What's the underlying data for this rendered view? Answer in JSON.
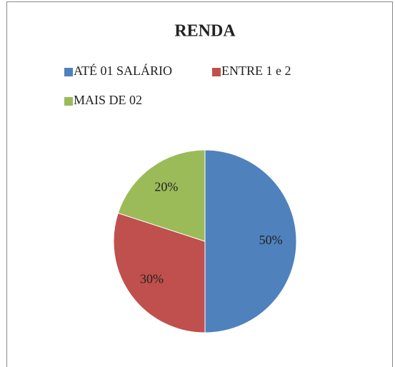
{
  "chart_data": {
    "type": "pie",
    "title": "RENDA",
    "categories": [
      "ATÉ 01 SALÁRIO",
      "ENTRE 1 e 2",
      "MAIS DE 02"
    ],
    "values": [
      50,
      30,
      20
    ],
    "value_labels": [
      "50%",
      "30%",
      "20%"
    ],
    "colors": [
      "#4f81bd",
      "#c0504d",
      "#9bbb59"
    ],
    "legend": "top"
  }
}
